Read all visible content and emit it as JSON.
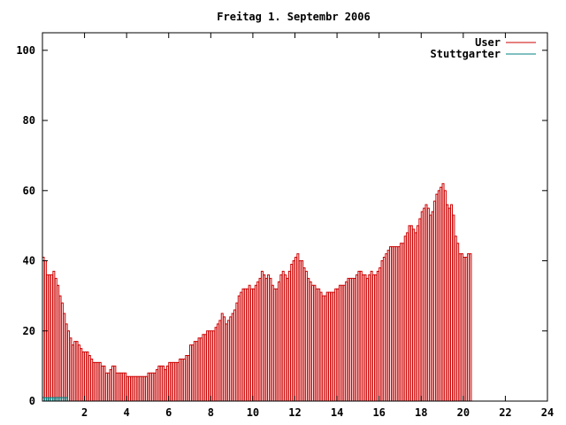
{
  "chart_data": {
    "type": "bar",
    "title": "Freitag 1. Septembr 2006",
    "xlim": [
      0,
      24
    ],
    "ylim": [
      0,
      105
    ],
    "x_ticks": [
      2,
      4,
      6,
      8,
      10,
      12,
      14,
      16,
      18,
      20,
      22,
      24
    ],
    "y_ticks": [
      0,
      20,
      40,
      60,
      80,
      100
    ],
    "legend_position": "top-right",
    "bar_width_hours": 0.0833,
    "series": [
      {
        "name": "User",
        "color": "#cc0000",
        "x_start": 0,
        "x_step": 0.1,
        "values": [
          41,
          40,
          36,
          36,
          36,
          37,
          35,
          33,
          30,
          28,
          25,
          22,
          20,
          18,
          16,
          17,
          17,
          16,
          15,
          14,
          14,
          14,
          13,
          12,
          11,
          11,
          11,
          11,
          10,
          10,
          8,
          8,
          9,
          10,
          10,
          8,
          8,
          8,
          8,
          8,
          7,
          7,
          7,
          7,
          7,
          7,
          7,
          7,
          7,
          7,
          8,
          8,
          8,
          8,
          9,
          10,
          10,
          10,
          9,
          10,
          11,
          11,
          11,
          11,
          11,
          12,
          12,
          12,
          13,
          13,
          16,
          16,
          17,
          17,
          18,
          18,
          19,
          19,
          20,
          20,
          20,
          20,
          21,
          22,
          23,
          25,
          24,
          22,
          23,
          24,
          25,
          26,
          28,
          30,
          31,
          32,
          32,
          32,
          33,
          32,
          32,
          33,
          34,
          35,
          37,
          36,
          35,
          36,
          35,
          33,
          32,
          32,
          34,
          36,
          37,
          36,
          35,
          37,
          39,
          40,
          41,
          42,
          40,
          40,
          38,
          37,
          35,
          34,
          33,
          33,
          32,
          32,
          31,
          30,
          30,
          31,
          31,
          31,
          31,
          32,
          32,
          33,
          33,
          33,
          34,
          35,
          35,
          35,
          35,
          36,
          37,
          37,
          36,
          36,
          35,
          36,
          37,
          36,
          36,
          37,
          38,
          40,
          41,
          42,
          43,
          44,
          44,
          44,
          44,
          44,
          45,
          45,
          47,
          48,
          50,
          50,
          49,
          48,
          50,
          52,
          54,
          55,
          56,
          55,
          53,
          54,
          57,
          59,
          60,
          61,
          62,
          60,
          56,
          55,
          56,
          53,
          47,
          45,
          42,
          42,
          41,
          41,
          42,
          42
        ]
      },
      {
        "name": "Stuttgarter",
        "color": "#008080",
        "x_start": 0,
        "x_step": 0.1,
        "values": [
          1,
          1,
          1,
          1,
          1,
          1,
          1,
          1,
          1,
          1,
          1,
          1,
          0,
          0,
          0,
          0,
          0,
          0,
          0,
          0,
          0,
          0,
          0,
          0,
          0,
          0,
          0,
          0,
          0,
          0,
          0,
          0,
          0,
          0,
          0,
          0,
          0,
          0,
          0,
          0,
          0,
          0,
          0,
          0,
          0,
          0,
          0,
          0,
          0,
          0,
          0,
          0,
          0,
          0,
          0,
          0,
          0,
          0,
          0,
          0,
          0,
          0,
          0,
          0,
          0,
          0,
          0,
          0,
          0,
          0,
          0,
          0,
          0,
          0,
          0,
          0,
          0,
          0,
          0,
          0,
          0,
          0,
          0,
          0,
          0,
          0,
          0,
          0,
          0,
          0,
          0,
          0,
          0,
          0,
          0,
          0,
          0,
          0,
          0,
          0,
          0,
          0,
          0,
          0,
          0,
          0,
          0,
          0,
          0,
          0,
          0,
          0,
          0,
          0,
          0,
          0,
          0,
          0,
          0,
          0,
          0,
          0,
          0,
          0,
          0,
          0,
          0,
          0,
          0,
          0,
          0,
          0,
          0,
          0,
          0,
          0,
          0,
          0,
          0,
          0,
          0,
          0,
          0,
          0,
          0,
          0,
          0,
          0,
          0,
          0,
          0,
          0,
          0,
          0,
          0,
          0,
          0,
          0,
          0,
          0,
          0,
          0,
          0,
          0,
          0,
          0,
          0,
          0,
          0,
          0,
          0,
          0,
          0,
          0,
          0,
          0,
          0,
          0,
          0,
          0,
          0,
          0,
          0,
          0,
          0,
          0,
          0,
          0,
          0,
          0,
          0,
          0,
          0,
          0,
          0,
          0,
          0,
          0,
          0,
          0,
          0,
          0,
          0,
          0,
          0,
          0,
          0,
          0,
          0,
          0,
          0,
          0,
          0,
          0,
          0,
          0,
          0,
          0,
          0,
          0,
          0,
          0,
          0,
          0,
          0,
          0,
          0,
          0,
          0,
          0,
          0,
          0,
          0,
          0,
          0,
          0,
          0
        ]
      }
    ]
  }
}
